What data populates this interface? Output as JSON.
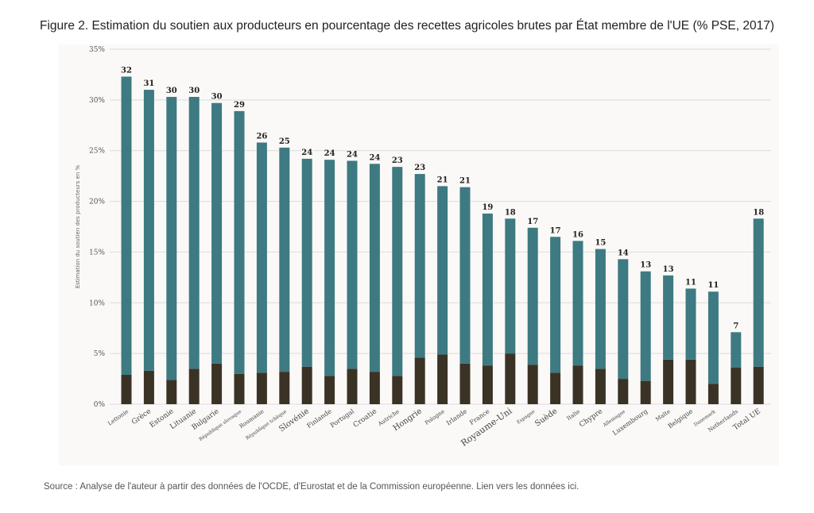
{
  "figure_title": "Figure 2. Estimation du soutien aux producteurs en pourcentage des recettes agricoles brutes par État membre de l'UE (% PSE, 2017)",
  "source_note": "Source : Analyse de l'auteur à partir des données de l'OCDE, d'Eurostat et de la Commission européenne. Lien vers les données ici.",
  "colors": {
    "teal": "#3d7a82",
    "dark": "#3b3226",
    "grid": "#dcdcdc",
    "panel": "#fbf9f7"
  },
  "chart_data": {
    "type": "bar",
    "stacked": true,
    "ylabel": "Estimation du soutien des producteurs en %",
    "ylim": [
      0,
      35
    ],
    "yticks": [
      0,
      5,
      10,
      15,
      20,
      25,
      30,
      35
    ],
    "ytick_labels": [
      "0%",
      "5%",
      "10%",
      "15%",
      "20%",
      "25%",
      "30%",
      "35%"
    ],
    "grid": true,
    "categories": [
      "Lettonie",
      "Grèce",
      "Estonie",
      "Lituanie",
      "Bulgarie",
      "République slovaque",
      "Roumanie",
      "République tchèque",
      "Slovénie",
      "Finlande",
      "Portugal",
      "Croatie",
      "Autriche",
      "Hongrie",
      "Pologne",
      "Irlande",
      "France",
      "Royaume-Uni",
      "Espagne",
      "Suède",
      "Italie",
      "Chypre",
      "Allemagne",
      "Luxembourg",
      "Malte",
      "Belgique",
      "Danemark",
      "Netherlands",
      "Total UE"
    ],
    "category_font_sizes": [
      7,
      9,
      9,
      9,
      9,
      6,
      7,
      6,
      10,
      8,
      8,
      9,
      7,
      10,
      7,
      8,
      8,
      11,
      6,
      10,
      7,
      9,
      6,
      8,
      7,
      8,
      6,
      7,
      9
    ],
    "data_labels": [
      "32",
      "31",
      "30",
      "30",
      "30",
      "29",
      "26",
      "25",
      "24",
      "24",
      "24",
      "24",
      "23",
      "23",
      "21",
      "21",
      "19",
      "18",
      "17",
      "17",
      "16",
      "15",
      "14",
      "13",
      "13",
      "11",
      "11",
      "7",
      "18"
    ],
    "series": [
      {
        "values": [
          2.9,
          3.3,
          2.4,
          3.5,
          4.0,
          3.0,
          3.1,
          3.2,
          3.7,
          2.8,
          3.5,
          3.2,
          2.8,
          4.6,
          4.9,
          4.0,
          3.8,
          5.0,
          3.9,
          3.1,
          3.8,
          3.5,
          2.5,
          2.3,
          4.4,
          4.4,
          2.0,
          3.6,
          3.7
        ]
      },
      {
        "values": [
          29.4,
          27.7,
          27.9,
          26.8,
          25.7,
          25.9,
          22.7,
          22.1,
          20.5,
          21.3,
          20.5,
          20.5,
          20.6,
          18.1,
          16.6,
          17.4,
          15.0,
          13.3,
          13.5,
          13.4,
          12.3,
          11.8,
          11.8,
          10.8,
          8.3,
          7.0,
          9.1,
          3.5,
          14.6
        ]
      }
    ]
  }
}
